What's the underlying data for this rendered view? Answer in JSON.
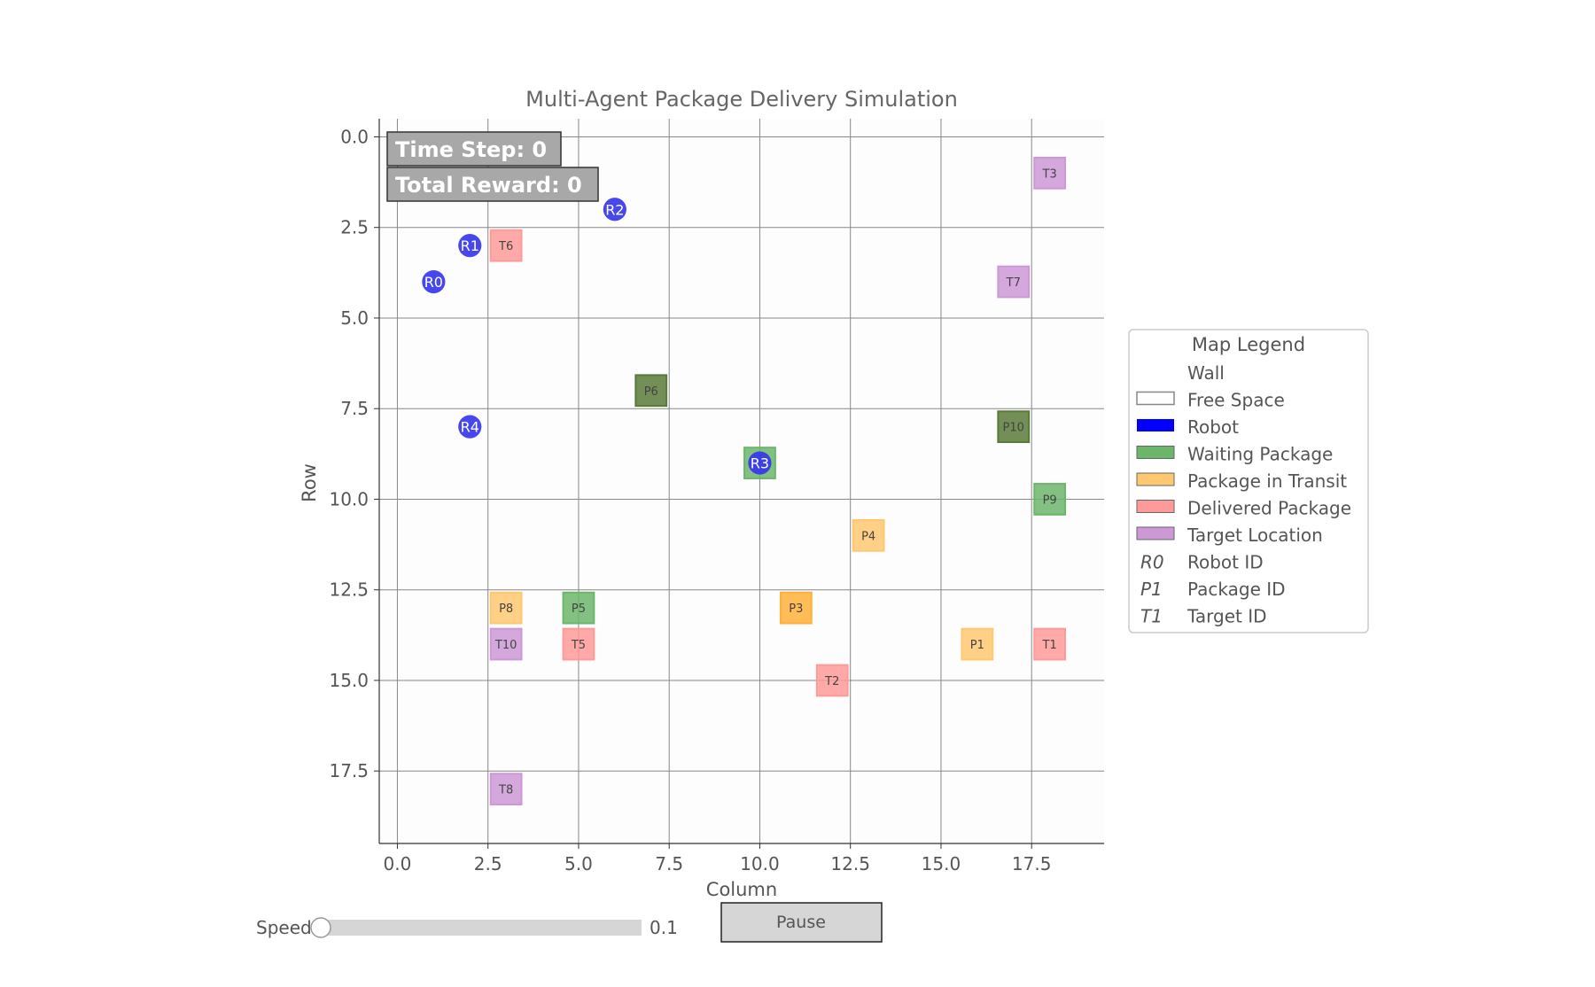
{
  "title": "Multi-Agent Package Delivery Simulation",
  "info": {
    "time_step": "Time Step: 0",
    "total_reward": "Total Reward: 0"
  },
  "controls": {
    "speed_label": "Speed",
    "speed_value": "0.1",
    "speed_fraction": 0.0,
    "pause_label": "Pause"
  },
  "colors": {
    "robot": "#3333ee",
    "waiting": "#6cb66c",
    "waiting_dark": "#5a7a3a",
    "transit": "#ffc870",
    "transit_dark": "#ffb03a",
    "delivered": "#ff9a9a",
    "target": "#cc99d6",
    "grid": "#888888"
  },
  "chart_data": {
    "type": "scatter",
    "title": "Multi-Agent Package Delivery Simulation",
    "xlabel": "Column",
    "ylabel": "Row",
    "xlim": [
      -0.5,
      19.5
    ],
    "ylim": [
      19.5,
      -0.5
    ],
    "y_inverted": true,
    "grid": true,
    "xticks": [
      "0.0",
      "2.5",
      "5.0",
      "7.5",
      "10.0",
      "12.5",
      "15.0",
      "17.5"
    ],
    "yticks": [
      "0.0",
      "2.5",
      "5.0",
      "7.5",
      "10.0",
      "12.5",
      "15.0",
      "17.5"
    ],
    "xtick_values": [
      0,
      2.5,
      5,
      7.5,
      10,
      12.5,
      15,
      17.5
    ],
    "ytick_values": [
      0,
      2.5,
      5,
      7.5,
      10,
      12.5,
      15,
      17.5
    ],
    "legend_placement": "right",
    "legend": {
      "title": "Map Legend",
      "items": [
        {
          "label": "Wall",
          "kind": "wall"
        },
        {
          "label": "Free Space",
          "kind": "free"
        },
        {
          "label": "Robot",
          "kind": "robot"
        },
        {
          "label": "Waiting Package",
          "kind": "waiting"
        },
        {
          "label": "Package in Transit",
          "kind": "transit"
        },
        {
          "label": "Delivered Package",
          "kind": "delivered"
        },
        {
          "label": "Target Location",
          "kind": "target"
        },
        {
          "label": "Robot ID",
          "kind": "text",
          "symbol": "R0"
        },
        {
          "label": "Package ID",
          "kind": "text",
          "symbol": "P1"
        },
        {
          "label": "Target ID",
          "kind": "text",
          "symbol": "T1"
        }
      ]
    },
    "robots": [
      {
        "label": "R0",
        "col": 1,
        "row": 4
      },
      {
        "label": "R1",
        "col": 2,
        "row": 3
      },
      {
        "label": "R2",
        "col": 6,
        "row": 2
      },
      {
        "label": "R3",
        "col": 10,
        "row": 9
      },
      {
        "label": "R4",
        "col": 2,
        "row": 8
      }
    ],
    "cells": [
      {
        "label": "T3",
        "col": 18,
        "row": 1,
        "kind": "target"
      },
      {
        "label": "T6",
        "col": 3,
        "row": 3,
        "kind": "delivered"
      },
      {
        "label": "T7",
        "col": 17,
        "row": 4,
        "kind": "target"
      },
      {
        "label": "P6",
        "col": 7,
        "row": 7,
        "kind": "waiting_dark"
      },
      {
        "label": "P10",
        "col": 17,
        "row": 8,
        "kind": "waiting_dark"
      },
      {
        "label": "",
        "col": 10,
        "row": 9,
        "kind": "waiting"
      },
      {
        "label": "P9",
        "col": 18,
        "row": 10,
        "kind": "waiting"
      },
      {
        "label": "P4",
        "col": 13,
        "row": 11,
        "kind": "transit"
      },
      {
        "label": "P8",
        "col": 3,
        "row": 13,
        "kind": "transit"
      },
      {
        "label": "P5",
        "col": 5,
        "row": 13,
        "kind": "waiting"
      },
      {
        "label": "P3",
        "col": 11,
        "row": 13,
        "kind": "transit_dark"
      },
      {
        "label": "T10",
        "col": 3,
        "row": 14,
        "kind": "target"
      },
      {
        "label": "T5",
        "col": 5,
        "row": 14,
        "kind": "delivered"
      },
      {
        "label": "P1",
        "col": 16,
        "row": 14,
        "kind": "transit"
      },
      {
        "label": "T1",
        "col": 18,
        "row": 14,
        "kind": "delivered"
      },
      {
        "label": "T2",
        "col": 12,
        "row": 15,
        "kind": "delivered"
      },
      {
        "label": "T8",
        "col": 3,
        "row": 18,
        "kind": "target"
      }
    ]
  }
}
